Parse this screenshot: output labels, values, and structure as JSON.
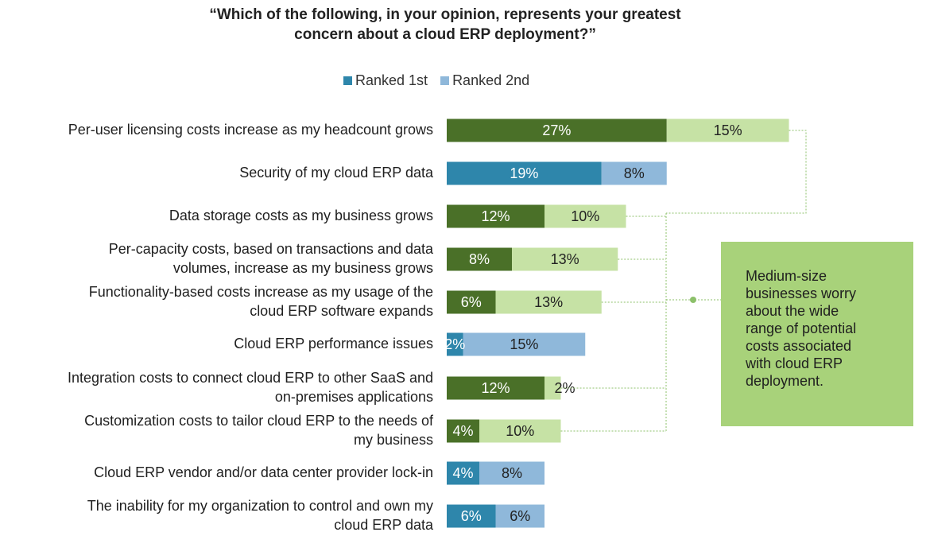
{
  "title_lines": [
    "“Which of the following, in your opinion, represents your greatest",
    "concern about a cloud ERP deployment?”"
  ],
  "legend": [
    {
      "label": "Ranked 1st",
      "color": "#2e86ab"
    },
    {
      "label": "Ranked 2nd",
      "color": "#8fb8da"
    }
  ],
  "callout": {
    "lines": [
      "Medium-size",
      "businesses worry",
      "about the wide",
      "range of potential",
      "costs associated",
      "with cloud ERP",
      "deployment."
    ]
  },
  "colors": {
    "cost_first": "#4a7028",
    "cost_second": "#c6e2a5",
    "other_first": "#2e86ab",
    "other_second": "#8fb8da",
    "callout_bg": "#a8d27a",
    "connector": "#8cc06a"
  },
  "chart_data": {
    "type": "bar",
    "orientation": "horizontal",
    "stacked": true,
    "unit": "%",
    "series": [
      {
        "name": "Ranked 1st"
      },
      {
        "name": "Ranked 2nd"
      }
    ],
    "categories": [
      {
        "lines": [
          "Per-user licensing costs increase as my headcount grows"
        ],
        "first": 27,
        "second": 15,
        "first_label": "27%",
        "second_label": "15%",
        "cost": true
      },
      {
        "lines": [
          "Security of my cloud ERP data"
        ],
        "first": 19,
        "second": 8,
        "first_label": "19%",
        "second_label": "8%",
        "cost": false
      },
      {
        "lines": [
          "Data storage costs as my business grows"
        ],
        "first": 12,
        "second": 10,
        "first_label": "12%",
        "second_label": "10%",
        "cost": true
      },
      {
        "lines": [
          "Per-capacity costs, based on transactions and data",
          "volumes, increase as my business grows"
        ],
        "first": 8,
        "second": 13,
        "first_label": "8%",
        "second_label": "13%",
        "cost": true
      },
      {
        "lines": [
          "Functionality-based costs increase as my usage of the",
          "cloud ERP software expands"
        ],
        "first": 6,
        "second": 13,
        "first_label": "6%",
        "second_label": "13%",
        "cost": true
      },
      {
        "lines": [
          "Cloud ERP performance issues"
        ],
        "first": 2,
        "second": 15,
        "first_label": "2%",
        "second_label": "15%",
        "cost": false
      },
      {
        "lines": [
          "Integration costs to connect cloud ERP to other SaaS and",
          "on-premises applications"
        ],
        "first": 12,
        "second": 2,
        "first_label": "12%",
        "second_label": "2%",
        "cost": true
      },
      {
        "lines": [
          "Customization costs to tailor cloud ERP to the needs of",
          "my business"
        ],
        "first": 4,
        "second": 10,
        "first_label": "4%",
        "second_label": "10%",
        "cost": true
      },
      {
        "lines": [
          "Cloud ERP vendor and/or data center provider lock-in"
        ],
        "first": 4,
        "second": 8,
        "first_label": "4%",
        "second_label": "8%",
        "cost": false
      },
      {
        "lines": [
          "The inability for my organization to control and own my",
          "cloud ERP data"
        ],
        "first": 6,
        "second": 6,
        "first_label": "6%",
        "second_label": "6%",
        "cost": false
      }
    ]
  }
}
